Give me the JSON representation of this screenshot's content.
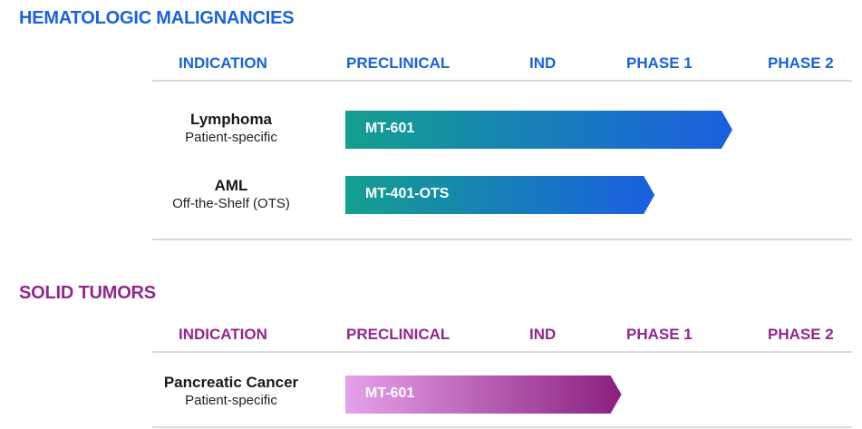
{
  "columns": [
    "INDICATION",
    "PRECLINICAL",
    "IND",
    "PHASE 1",
    "PHASE 2"
  ],
  "sections": [
    {
      "title": "HEMATOLOGIC MALIGNANCIES",
      "rows": [
        {
          "indication": "Lymphoma",
          "subtext": "Patient-specific",
          "program": "MT-601"
        },
        {
          "indication": "AML",
          "subtext": "Off-the-Shelf (OTS)",
          "program": "MT-401-OTS"
        }
      ]
    },
    {
      "title": "SOLID TUMORS",
      "rows": [
        {
          "indication": "Pancreatic Cancer",
          "subtext": "Patient-specific",
          "program": "MT-601"
        }
      ]
    }
  ],
  "colors": {
    "heme_title": "#1a63d8",
    "solid_title": "#93268f",
    "heme_bar_start": "#13a08e",
    "heme_bar_end": "#1a5fe0",
    "solid_bar_start": "#e6a2eb",
    "solid_bar_end": "#8a1f7f",
    "rule": "#d9d9d9"
  },
  "chart_data": {
    "type": "bar",
    "stages": [
      "PRECLINICAL",
      "IND",
      "PHASE 1",
      "PHASE 2"
    ],
    "series": [
      {
        "section": "HEMATOLOGIC MALIGNANCIES",
        "indication": "Lymphoma",
        "program": "MT-601",
        "progress": 2.75
      },
      {
        "section": "HEMATOLOGIC MALIGNANCIES",
        "indication": "AML",
        "program": "MT-401-OTS",
        "progress": 2.2
      },
      {
        "section": "SOLID TUMORS",
        "indication": "Pancreatic Cancer",
        "program": "MT-601",
        "progress": 1.95
      }
    ]
  }
}
